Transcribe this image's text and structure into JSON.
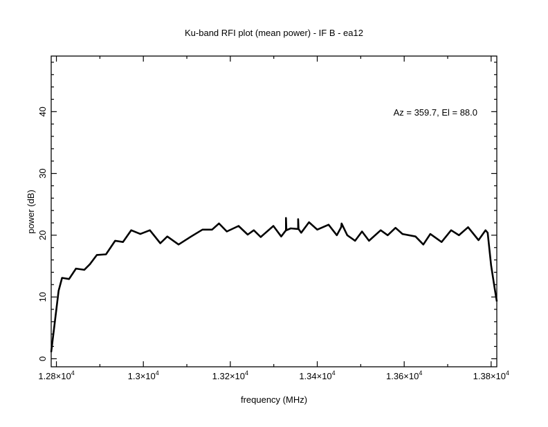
{
  "chart_data": {
    "type": "line",
    "title": "Ku-band RFI plot (mean power) - IF B - ea12",
    "xlabel": "frequency (MHz)",
    "ylabel": "power (dB)",
    "annotation": "Az = 359.7, El = 88.0",
    "xlim": [
      12788,
      13813
    ],
    "ylim": [
      -1.3,
      49.0
    ],
    "x_major_ticks": [
      12800,
      13000,
      13200,
      13400,
      13600,
      13800
    ],
    "x_tick_labels": [
      {
        "mantissa": "1.28",
        "exp": "4"
      },
      {
        "mantissa": "1.3",
        "exp": "4"
      },
      {
        "mantissa": "1.32",
        "exp": "4"
      },
      {
        "mantissa": "1.34",
        "exp": "4"
      },
      {
        "mantissa": "1.36",
        "exp": "4"
      },
      {
        "mantissa": "1.38",
        "exp": "4"
      }
    ],
    "x_minor_step": 100,
    "y_major_ticks": [
      0,
      10,
      20,
      30,
      40
    ],
    "y_tick_labels": [
      "0",
      "10",
      "20",
      "30",
      "40"
    ],
    "y_minor_step": 2,
    "grid": false,
    "series": [
      {
        "name": "mean power",
        "color": "#000000",
        "x": [
          12788,
          12805,
          12813,
          12829,
          12845,
          12864,
          12877,
          12893,
          12914,
          12935,
          12953,
          12972,
          12993,
          13015,
          13039,
          13055,
          13081,
          13110,
          13136,
          13158,
          13174,
          13192,
          13219,
          13240,
          13254,
          13270,
          13299,
          13317,
          13328,
          13328,
          13329,
          13339,
          13356,
          13356,
          13357,
          13363,
          13381,
          13400,
          13426,
          13445,
          13455,
          13456,
          13469,
          13487,
          13503,
          13519,
          13546,
          13562,
          13580,
          13596,
          13626,
          13644,
          13660,
          13686,
          13708,
          13726,
          13747,
          13771,
          13787,
          13792,
          13800,
          13808,
          13813
        ],
        "y": [
          1.1,
          11.0,
          13.1,
          12.9,
          14.6,
          14.4,
          15.3,
          16.8,
          16.9,
          19.1,
          18.9,
          20.8,
          20.2,
          20.8,
          18.7,
          19.8,
          18.5,
          19.8,
          20.9,
          20.9,
          21.9,
          20.6,
          21.5,
          20.1,
          20.8,
          19.7,
          21.5,
          19.8,
          20.8,
          22.8,
          20.8,
          21.1,
          21.0,
          22.6,
          21.0,
          20.4,
          22.1,
          20.9,
          21.7,
          20.0,
          21.3,
          21.9,
          20.0,
          19.1,
          20.6,
          19.1,
          20.8,
          20.0,
          21.2,
          20.2,
          19.8,
          18.5,
          20.2,
          18.9,
          20.8,
          20.0,
          21.3,
          19.2,
          20.8,
          20.4,
          15.1,
          11.4,
          9.3
        ]
      }
    ]
  }
}
